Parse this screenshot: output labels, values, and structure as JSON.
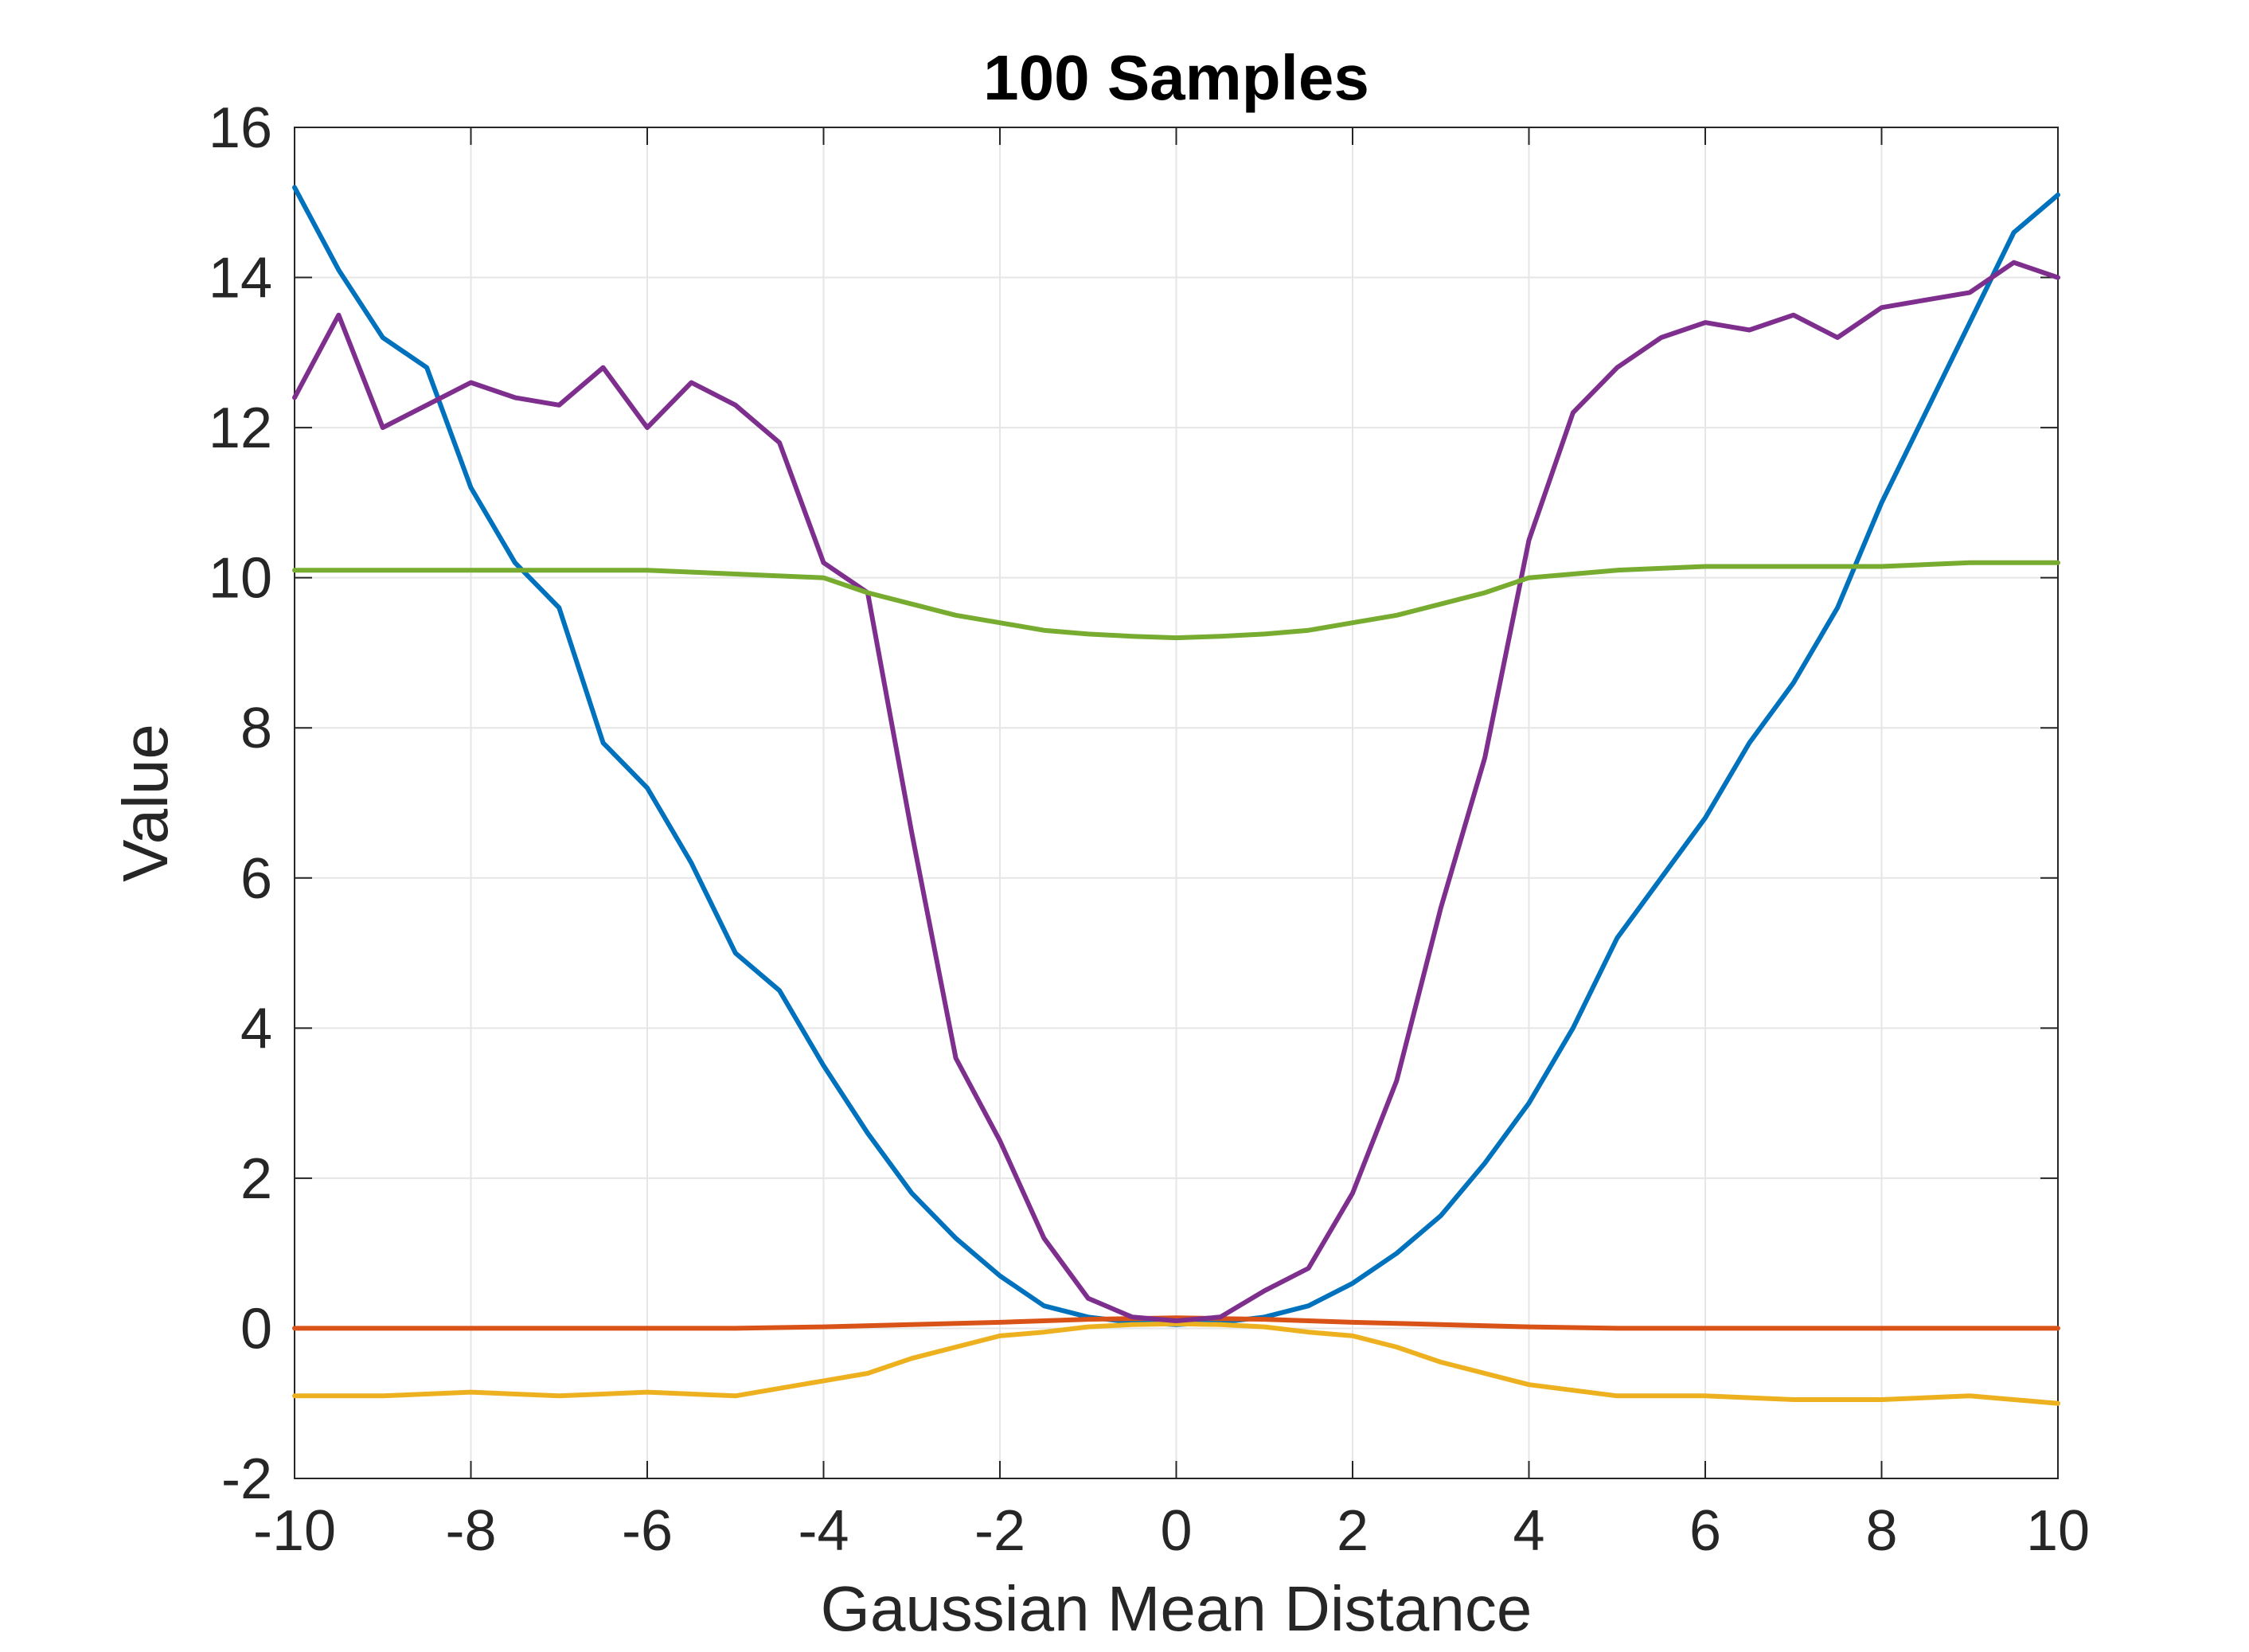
{
  "chart_data": {
    "type": "line",
    "title": "100 Samples",
    "xlabel": "Gaussian Mean Distance",
    "ylabel": "Value",
    "xlim": [
      -10,
      10
    ],
    "ylim": [
      -2,
      16
    ],
    "xticks": [
      -10,
      -8,
      -6,
      -4,
      -2,
      0,
      2,
      4,
      6,
      8,
      10
    ],
    "xtick_labels": [
      "-10",
      "-8",
      "-6",
      "-4",
      "-2",
      "0",
      "2",
      "4",
      "6",
      "8",
      "10"
    ],
    "yticks": [
      -2,
      0,
      2,
      4,
      6,
      8,
      10,
      12,
      14,
      16
    ],
    "ytick_labels": [
      "-2",
      "0",
      "2",
      "4",
      "6",
      "8",
      "10",
      "12",
      "14",
      "16"
    ],
    "grid": true,
    "series": [
      {
        "color": "#0072BD",
        "x": [
          -10,
          -9.5,
          -9,
          -8.5,
          -8,
          -7.5,
          -7,
          -6.5,
          -6,
          -5.5,
          -5,
          -4.5,
          -4,
          -3.5,
          -3,
          -2.5,
          -2,
          -1.5,
          -1,
          -0.5,
          0,
          0.5,
          1,
          1.5,
          2,
          2.5,
          3,
          3.5,
          4,
          4.5,
          5,
          5.5,
          6,
          6.5,
          7,
          7.5,
          8,
          8.5,
          9,
          9.5,
          10
        ],
        "values": [
          15.2,
          14.1,
          13.2,
          12.8,
          11.2,
          10.2,
          9.6,
          7.8,
          7.2,
          6.2,
          5.0,
          4.5,
          3.5,
          2.6,
          1.8,
          1.2,
          0.7,
          0.3,
          0.15,
          0.08,
          0.05,
          0.08,
          0.15,
          0.3,
          0.6,
          1.0,
          1.5,
          2.2,
          3.0,
          4.0,
          5.2,
          6.0,
          6.8,
          7.8,
          8.6,
          9.6,
          11.0,
          12.2,
          13.4,
          14.6,
          15.1
        ]
      },
      {
        "color": "#D95319",
        "x": [
          -10,
          -9,
          -8,
          -7,
          -6,
          -5,
          -4,
          -3,
          -2,
          -1.5,
          -1,
          -0.5,
          0,
          0.5,
          1,
          1.5,
          2,
          3,
          4,
          5,
          6,
          7,
          8,
          9,
          10
        ],
        "values": [
          0.0,
          0.0,
          0.0,
          0.0,
          0.0,
          0.0,
          0.02,
          0.05,
          0.08,
          0.1,
          0.12,
          0.13,
          0.14,
          0.13,
          0.12,
          0.1,
          0.08,
          0.05,
          0.02,
          0.0,
          0.0,
          0.0,
          0.0,
          0.0,
          0.0
        ]
      },
      {
        "color": "#EDB120",
        "x": [
          -10,
          -9,
          -8,
          -7,
          -6,
          -5,
          -4,
          -3.5,
          -3,
          -2.5,
          -2,
          -1.5,
          -1,
          -0.5,
          0,
          0.5,
          1,
          1.5,
          2,
          2.5,
          3,
          3.5,
          4,
          5,
          6,
          7,
          8,
          9,
          10
        ],
        "values": [
          -0.9,
          -0.9,
          -0.85,
          -0.9,
          -0.85,
          -0.9,
          -0.7,
          -0.6,
          -0.4,
          -0.25,
          -0.1,
          -0.05,
          0.02,
          0.05,
          0.06,
          0.05,
          0.02,
          -0.05,
          -0.1,
          -0.25,
          -0.45,
          -0.6,
          -0.75,
          -0.9,
          -0.9,
          -0.95,
          -0.95,
          -0.9,
          -1.0
        ]
      },
      {
        "color": "#7E2F8E",
        "x": [
          -10,
          -9.5,
          -9,
          -8.5,
          -8,
          -7.5,
          -7,
          -6.5,
          -6,
          -5.5,
          -5,
          -4.5,
          -4,
          -3.5,
          -3,
          -2.5,
          -2,
          -1.5,
          -1,
          -0.5,
          0,
          0.5,
          1,
          1.5,
          2,
          2.5,
          3,
          3.5,
          4,
          4.5,
          5,
          5.5,
          6,
          6.5,
          7,
          7.5,
          8,
          8.5,
          9,
          9.5,
          10
        ],
        "values": [
          12.4,
          13.5,
          12.0,
          12.3,
          12.6,
          12.4,
          12.3,
          12.8,
          12.0,
          12.6,
          12.3,
          11.8,
          10.2,
          9.8,
          6.6,
          3.6,
          2.5,
          1.2,
          0.4,
          0.15,
          0.1,
          0.15,
          0.5,
          0.8,
          1.8,
          3.3,
          5.6,
          7.6,
          10.5,
          12.2,
          12.8,
          13.2,
          13.4,
          13.3,
          13.5,
          13.2,
          13.6,
          13.7,
          13.8,
          14.2,
          14.0
        ]
      },
      {
        "color": "#77AC30",
        "x": [
          -10,
          -9,
          -8,
          -7,
          -6,
          -5,
          -4,
          -3.5,
          -3,
          -2.5,
          -2,
          -1.5,
          -1,
          -0.5,
          0,
          0.5,
          1,
          1.5,
          2,
          2.5,
          3,
          3.5,
          4,
          5,
          6,
          7,
          8,
          9,
          10
        ],
        "values": [
          10.1,
          10.1,
          10.1,
          10.1,
          10.1,
          10.05,
          10.0,
          9.8,
          9.65,
          9.5,
          9.4,
          9.3,
          9.25,
          9.22,
          9.2,
          9.22,
          9.25,
          9.3,
          9.4,
          9.5,
          9.65,
          9.8,
          10.0,
          10.1,
          10.15,
          10.15,
          10.15,
          10.2,
          10.2
        ]
      }
    ]
  }
}
